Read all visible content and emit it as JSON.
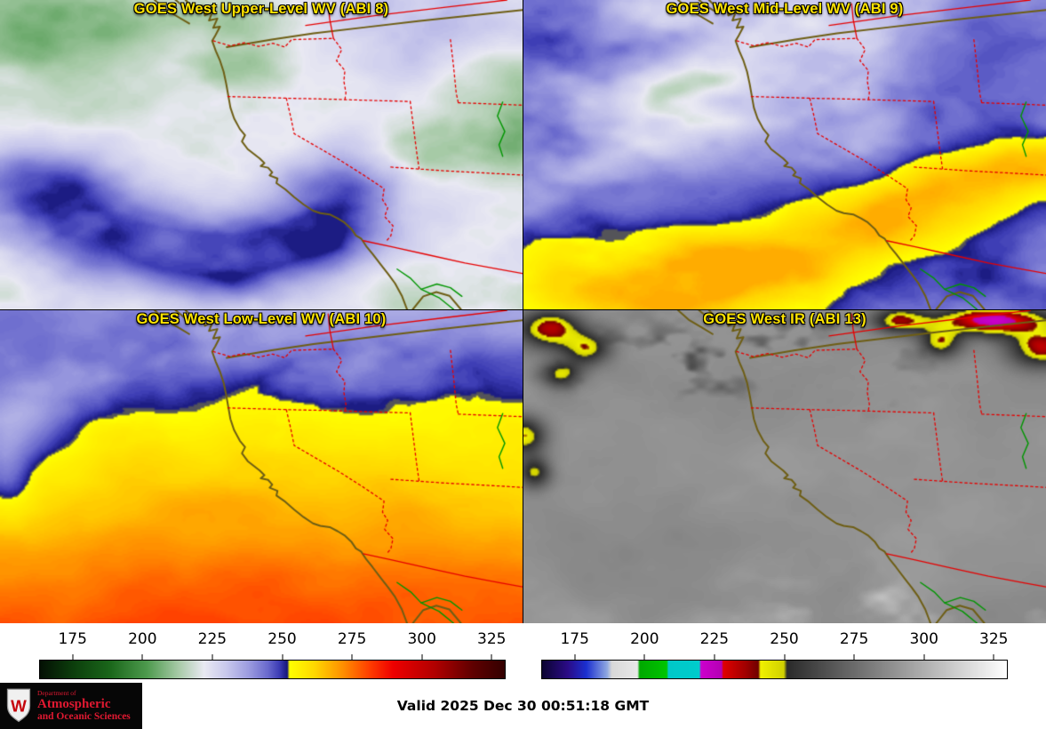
{
  "panels": [
    {
      "id": "abi8",
      "title": "GOES West Upper-Level WV (ABI 8)",
      "colormap": "wv"
    },
    {
      "id": "abi9",
      "title": "GOES West Mid-Level WV (ABI 9)",
      "colormap": "wv"
    },
    {
      "id": "abi10",
      "title": "GOES West Low-Level WV (ABI 10)",
      "colormap": "wv"
    },
    {
      "id": "abi13",
      "title": "GOES West IR (ABI 13)",
      "colormap": "ir"
    }
  ],
  "title_color": "#ffe400",
  "colorbars": {
    "ticks": [
      175,
      200,
      225,
      250,
      275,
      300,
      325
    ],
    "range": [
      163,
      330
    ],
    "wv_stops": [
      [
        0.0,
        "#041004"
      ],
      [
        0.072,
        "#0c3e0c"
      ],
      [
        0.15,
        "#1a661a"
      ],
      [
        0.23,
        "#4d9a4d"
      ],
      [
        0.3,
        "#a9cba9"
      ],
      [
        0.353,
        "#e9e9f2"
      ],
      [
        0.4,
        "#c9c9ec"
      ],
      [
        0.45,
        "#9b9bdf"
      ],
      [
        0.49,
        "#6a6acd"
      ],
      [
        0.515,
        "#3c3cb4"
      ],
      [
        0.532,
        "#16167a"
      ],
      [
        0.537,
        "#ffff00"
      ],
      [
        0.59,
        "#ffd800"
      ],
      [
        0.65,
        "#ff9100"
      ],
      [
        0.71,
        "#ff3c00"
      ],
      [
        0.76,
        "#ee0000"
      ],
      [
        0.85,
        "#b00000"
      ],
      [
        0.93,
        "#600000"
      ],
      [
        1.0,
        "#330000"
      ]
    ],
    "ir_stops": [
      [
        0.0,
        "#0b0430"
      ],
      [
        0.055,
        "#2a0b86"
      ],
      [
        0.095,
        "#1b2fd0"
      ],
      [
        0.14,
        "#8fa8e0"
      ],
      [
        0.15,
        "#d8d8d8"
      ],
      [
        0.205,
        "#e8e8e8"
      ],
      [
        0.21,
        "#00a800"
      ],
      [
        0.268,
        "#00c400"
      ],
      [
        0.272,
        "#00c8c8"
      ],
      [
        0.338,
        "#00cccc"
      ],
      [
        0.342,
        "#cc00cc"
      ],
      [
        0.386,
        "#b400b4"
      ],
      [
        0.39,
        "#e00000"
      ],
      [
        0.438,
        "#a00000"
      ],
      [
        0.465,
        "#700000"
      ],
      [
        0.47,
        "#f0f000"
      ],
      [
        0.52,
        "#d0d000"
      ],
      [
        0.527,
        "#2a2a2a"
      ],
      [
        1.0,
        "#ffffff"
      ]
    ]
  },
  "map_colors": {
    "coastline": "#6e5e14",
    "state_border": "#e60000",
    "river": "#009600"
  },
  "footer": {
    "valid_time": "Valid 2025 Dec 30 00:51:18 GMT"
  },
  "logo": {
    "dept": "Department of",
    "line1": "Atmospheric",
    "line2": "and Oceanic Sciences",
    "crest_letter": "W"
  }
}
